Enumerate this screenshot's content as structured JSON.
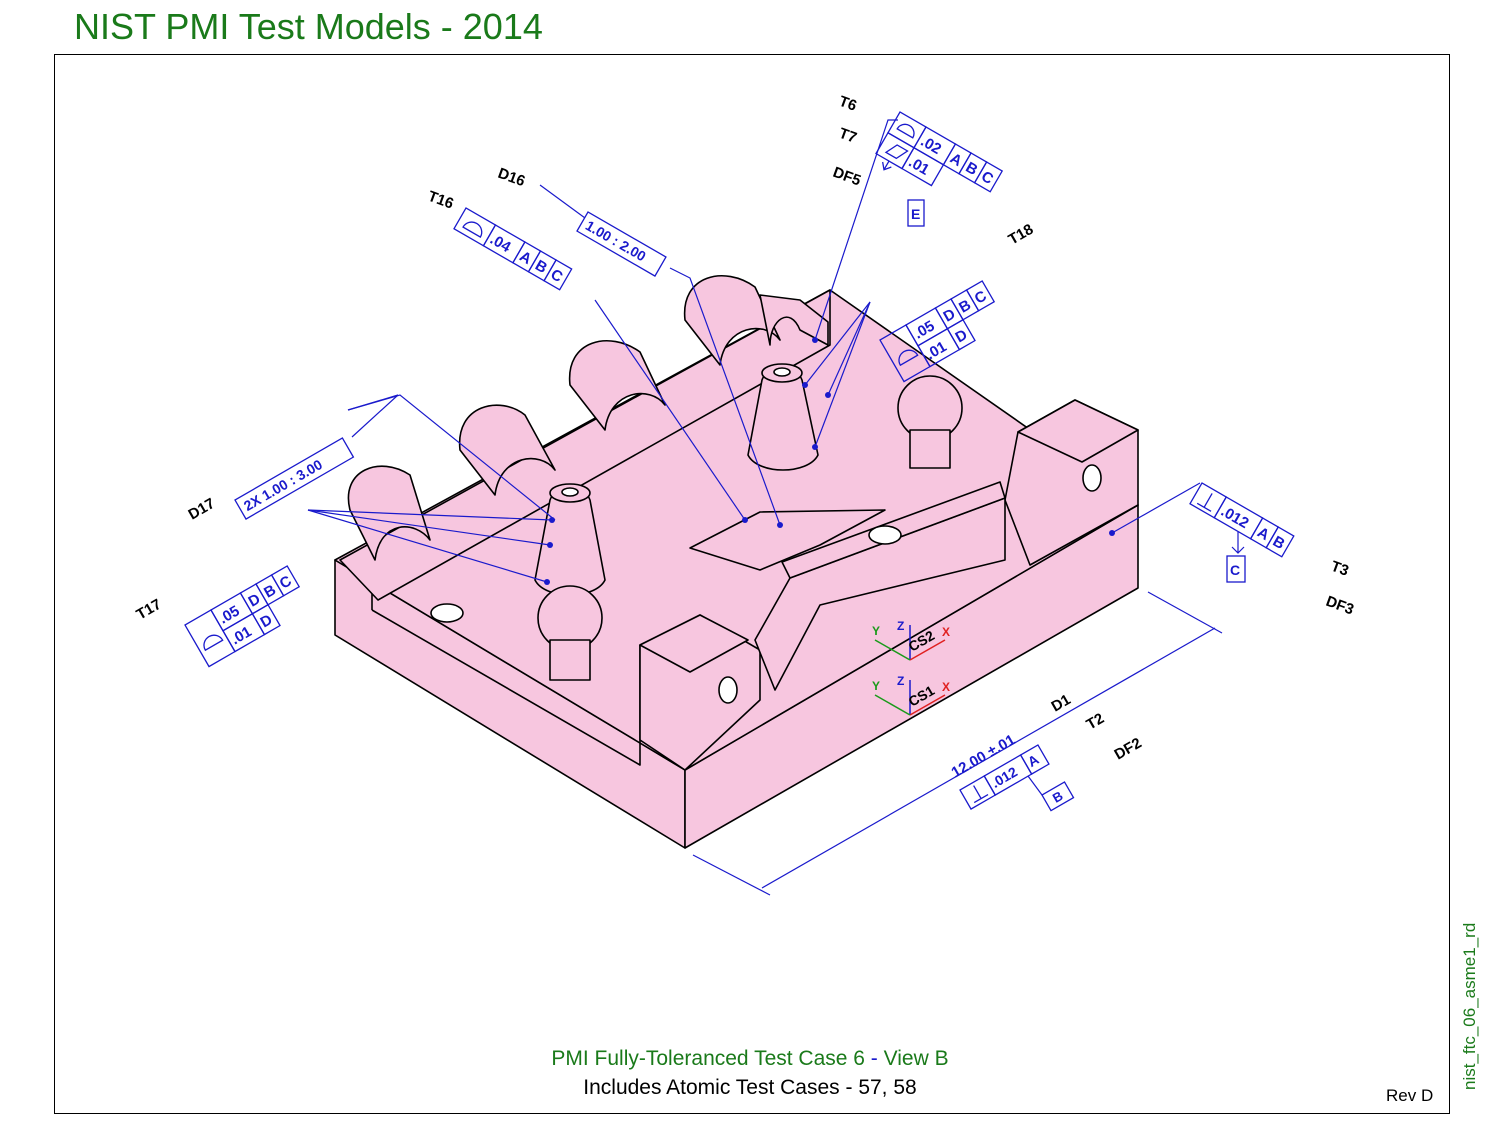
{
  "header": {
    "title": "NIST PMI Test Models - 2014"
  },
  "side_label": "nist_ftc_06_asme1_rd",
  "caption": {
    "line1_main": "PMI Fully-Toleranced Test Case 6",
    "line1_sep": " - ",
    "line1_view": "View B",
    "line2": "Includes Atomic Test Cases - 57, 58"
  },
  "revision": "Rev D",
  "annotations": {
    "t6": "T6",
    "t7": "T7",
    "df5": "DF5",
    "d16": "D16",
    "t16": "T16",
    "t18": "T18",
    "d17": "D17",
    "t17": "T17",
    "t3": "T3",
    "df3": "DF3",
    "d1": "D1",
    "t2": "T2",
    "df2": "DF2"
  },
  "fcf": {
    "t6_tol": ".02",
    "t6_a": "A",
    "t6_b": "B",
    "t6_c": "C",
    "t7_tol": ".01",
    "df5_label": "E",
    "d16_text": "1.00 : 2.00",
    "t16_tol": ".04",
    "t16_a": "A",
    "t16_b": "B",
    "t16_c": "C",
    "t18_tol1": ".05",
    "t18_d1": "D",
    "t18_b": "B",
    "t18_c": "C",
    "t18_tol2": ".01",
    "t18_d2": "D",
    "d17_text": "2X 1.00 : 3.00",
    "t17_tol1": ".05",
    "t17_d1": "D",
    "t17_b": "B",
    "t17_c": "C",
    "t17_tol2": ".01",
    "t17_d2": "D",
    "t3_tol": ".012",
    "t3_a": "A",
    "t3_b": "B",
    "df3_label": "C",
    "d1_text": "12.00 ±.01",
    "t2_tol": ".012",
    "t2_a": "A",
    "df2_label": "B"
  },
  "coordinate_systems": {
    "cs1": "CS1",
    "cs2": "CS2",
    "x": "X",
    "y": "Y",
    "z": "Z"
  },
  "colors": {
    "part_fill": "#f7c6df",
    "pmi_blue": "#1a1acc",
    "title_green": "#1a7a1a"
  }
}
